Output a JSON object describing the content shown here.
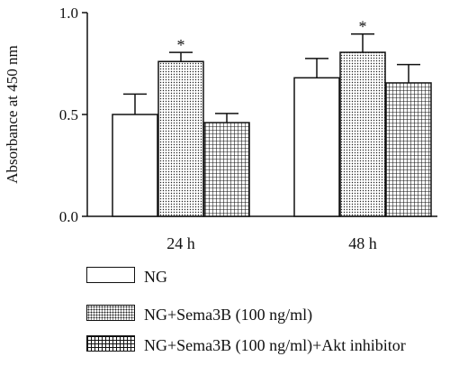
{
  "chart_data": {
    "type": "bar",
    "ylabel": "Absorbance at 450 nm",
    "xlabel": "",
    "ylim": [
      0,
      1.0
    ],
    "yticks": [
      "0.0",
      "0.5",
      "1.0"
    ],
    "categories": [
      "24 h",
      "48 h"
    ],
    "series": [
      {
        "name": "NG",
        "values": [
          0.5,
          0.68
        ],
        "errors": [
          0.1,
          0.095
        ],
        "pattern": "plain"
      },
      {
        "name": "NG+Sema3B (100 ng/ml)",
        "values": [
          0.76,
          0.805
        ],
        "errors": [
          0.045,
          0.09
        ],
        "pattern": "dots"
      },
      {
        "name": "NG+Sema3B (100 ng/ml)+Akt inhibitor",
        "values": [
          0.46,
          0.655
        ],
        "errors": [
          0.045,
          0.09
        ],
        "pattern": "grid"
      }
    ],
    "significance": [
      {
        "category": "24 h",
        "series": 1,
        "label": "*"
      },
      {
        "category": "48 h",
        "series": 1,
        "label": "*"
      }
    ],
    "legend_position": "bottom"
  },
  "legend": {
    "items": [
      {
        "label": "NG"
      },
      {
        "label": "NG+Sema3B (100 ng/ml)"
      },
      {
        "label": "NG+Sema3B (100 ng/ml)+Akt inhibitor"
      }
    ]
  }
}
